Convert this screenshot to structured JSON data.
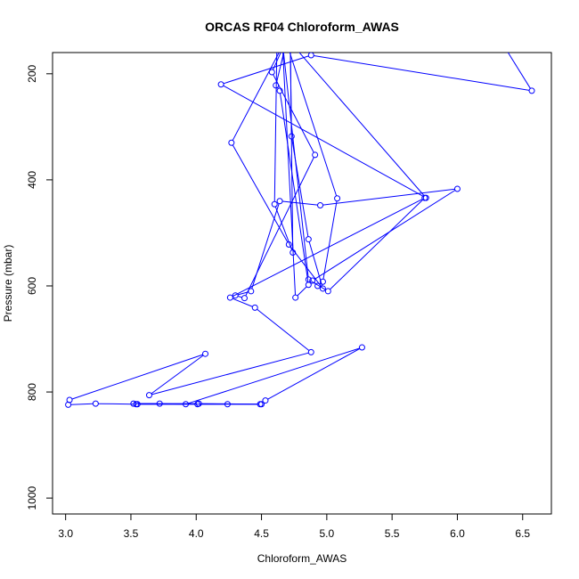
{
  "chart_data": {
    "type": "line",
    "title": "ORCAS RF04 Chloroform_AWAS",
    "xlabel": "Chloroform_AWAS",
    "ylabel": "Pressure (mbar)",
    "xlim": [
      2.9,
      6.72
    ],
    "ylim": [
      1030,
      160
    ],
    "y_reversed": true,
    "grid": false,
    "legend": "none",
    "xticks": [
      3.0,
      3.5,
      4.0,
      4.5,
      5.0,
      5.5,
      6.0,
      6.5
    ],
    "xtick_labels": [
      "3.0",
      "3.5",
      "4.0",
      "4.5",
      "5.0",
      "5.5",
      "6.0",
      "6.5"
    ],
    "yticks": [
      200,
      400,
      600,
      800,
      1000
    ],
    "ytick_labels": [
      "200",
      "400",
      "600",
      "800",
      "1000"
    ],
    "colors": {
      "series": "#0000ff",
      "axis": "#000000"
    },
    "series": [
      {
        "points": [
          [
            6.3,
            125
          ],
          [
            6.57,
            232
          ],
          [
            4.88,
            165
          ],
          [
            4.19,
            220
          ],
          [
            5.76,
            434
          ],
          [
            4.62,
            112
          ],
          [
            4.6,
            446
          ],
          [
            4.74,
            537
          ],
          [
            4.72,
            130
          ],
          [
            4.73,
            318
          ],
          [
            4.86,
            512
          ],
          [
            4.97,
            605
          ],
          [
            4.71,
            522
          ],
          [
            4.27,
            330
          ],
          [
            4.72,
            120
          ],
          [
            4.58,
            197
          ],
          [
            4.91,
            353
          ],
          [
            4.37,
            623
          ],
          [
            4.3,
            618
          ],
          [
            4.42,
            610
          ],
          [
            4.64,
            440
          ],
          [
            4.95,
            448
          ],
          [
            6.0,
            417
          ],
          [
            4.89,
            590
          ],
          [
            4.93,
            600
          ],
          [
            4.97,
            592
          ],
          [
            5.08,
            435
          ],
          [
            4.69,
            140
          ],
          [
            4.61,
            222
          ],
          [
            4.64,
            232
          ],
          [
            4.86,
            598
          ],
          [
            4.76,
            622
          ],
          [
            4.66,
            140
          ],
          [
            4.86,
            588
          ],
          [
            5.01,
            610
          ],
          [
            5.75,
            434
          ],
          [
            4.26,
            622
          ],
          [
            4.45,
            641
          ],
          [
            4.88,
            725
          ],
          [
            3.64,
            806
          ],
          [
            4.07,
            728
          ],
          [
            3.03,
            815
          ],
          [
            3.02,
            824
          ],
          [
            3.23,
            822
          ],
          [
            3.54,
            823
          ],
          [
            4.01,
            823
          ],
          [
            4.24,
            823
          ],
          [
            4.5,
            823
          ],
          [
            4.53,
            816
          ],
          [
            5.27,
            716
          ],
          [
            3.92,
            823
          ],
          [
            3.72,
            822
          ],
          [
            3.52,
            822
          ],
          [
            4.02,
            822
          ],
          [
            4.49,
            823
          ],
          [
            3.55,
            823
          ]
        ]
      }
    ]
  }
}
